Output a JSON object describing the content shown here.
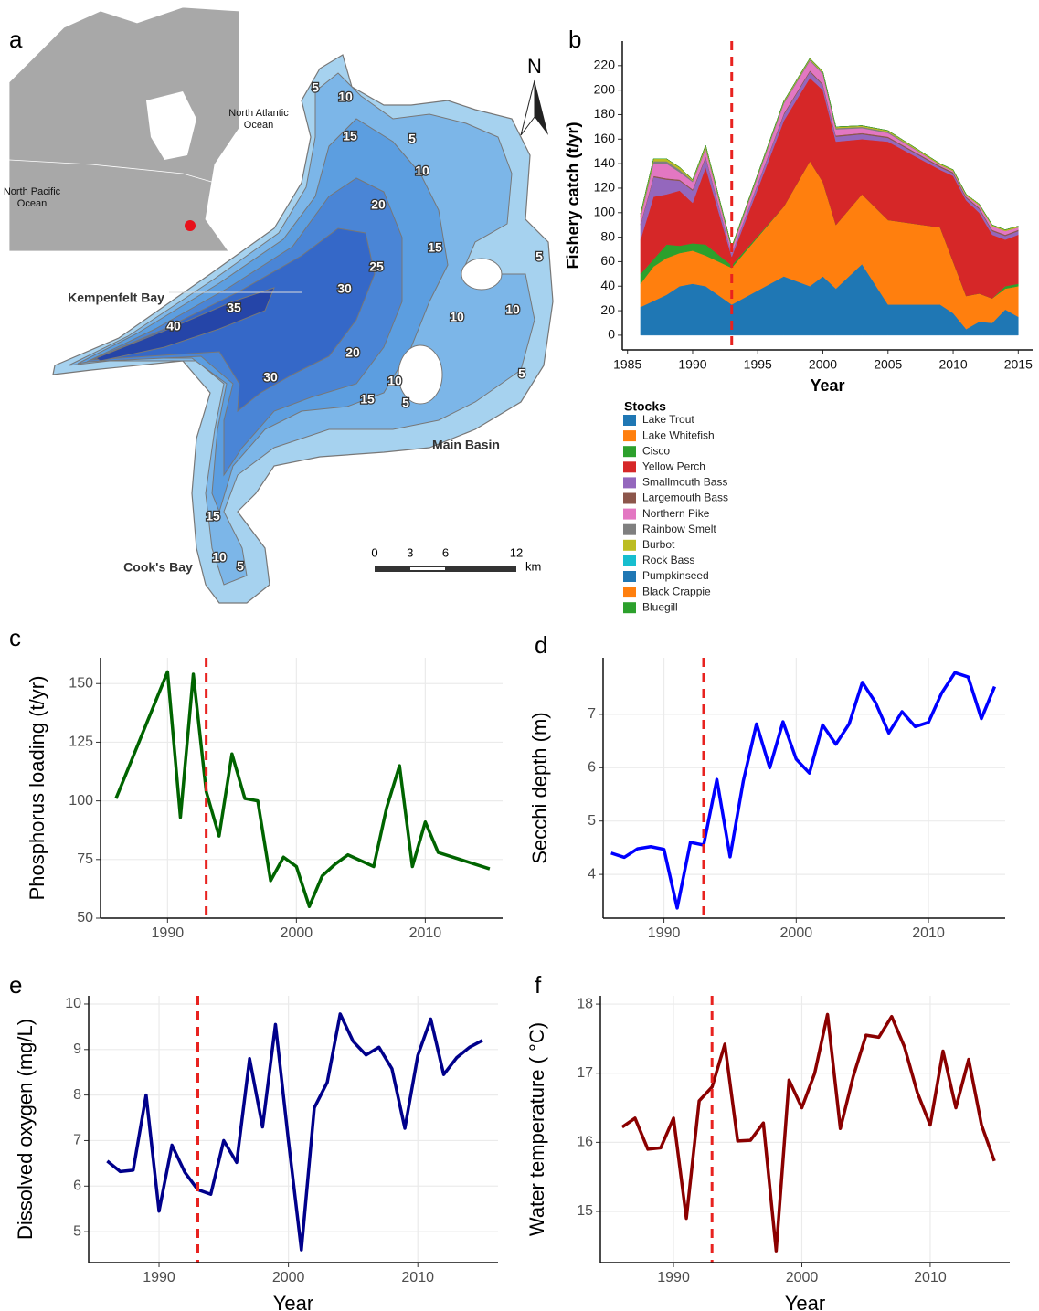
{
  "map": {
    "label": "a",
    "north": "N",
    "oceans": [
      "North Atlantic Ocean",
      "North Pacific Ocean"
    ],
    "places": [
      "Kempenfelt Bay",
      "Main Basin",
      "Cook's Bay"
    ],
    "depth_labels": [
      5,
      10,
      15,
      5,
      10,
      20,
      15,
      5,
      25,
      30,
      35,
      40,
      10,
      10,
      20,
      30,
      10,
      5,
      15,
      5,
      15,
      10,
      5
    ],
    "scale_ticks": [
      0,
      3,
      6,
      12
    ],
    "scale_unit": "km"
  },
  "chart_data": [
    {
      "label": "b",
      "type": "area",
      "stacked": true,
      "grid": false,
      "legend_title": "Stocks",
      "xlabel": "Year",
      "ylabel": "Fishery catch (t/yr)",
      "vline": 1993,
      "vline_color": "#e8221f",
      "x": [
        1986,
        1987,
        1988,
        1989,
        1990,
        1991,
        1993,
        1997,
        1999,
        2000,
        2001,
        2003,
        2005,
        2009,
        2010,
        2011,
        2012,
        2013,
        2014,
        2015
      ],
      "series": [
        {
          "name": "Lake Trout",
          "color": "#1f77b4",
          "values": [
            23,
            28,
            33,
            40,
            42,
            40,
            25,
            48,
            40,
            48,
            38,
            58,
            25,
            25,
            18,
            5,
            11,
            10,
            21,
            15
          ]
        },
        {
          "name": "Lake Whitefish",
          "color": "#ff7f0e",
          "values": [
            19,
            28,
            30,
            27,
            27,
            25,
            30,
            57,
            102,
            77,
            52,
            57,
            69,
            63,
            42,
            27,
            23,
            20,
            17,
            25
          ]
        },
        {
          "name": "Cisco",
          "color": "#2ca02c",
          "values": [
            8,
            6,
            11,
            6,
            6,
            9,
            2,
            0,
            0,
            0,
            0,
            0,
            0,
            0,
            0,
            0,
            0,
            0,
            2,
            2
          ]
        },
        {
          "name": "Yellow Perch",
          "color": "#d62728",
          "values": [
            28,
            51,
            41,
            45,
            33,
            63,
            7,
            70,
            68,
            75,
            68,
            45,
            64,
            47,
            70,
            78,
            66,
            52,
            38,
            40
          ]
        },
        {
          "name": "Smallmouth Bass",
          "color": "#9467bd",
          "values": [
            12,
            16,
            12,
            8,
            10,
            8,
            3,
            5,
            5,
            4,
            4,
            4,
            3,
            2,
            2,
            2,
            3,
            3,
            3,
            3
          ]
        },
        {
          "name": "Largemouth Bass",
          "color": "#8c564b",
          "values": [
            1,
            1,
            1,
            1,
            1,
            1,
            0,
            1,
            1,
            1,
            1,
            1,
            1,
            1,
            1,
            1,
            1,
            1,
            1,
            1
          ]
        },
        {
          "name": "Northern Pike",
          "color": "#e377c2",
          "values": [
            5,
            10,
            12,
            6,
            6,
            6,
            3,
            8,
            8,
            8,
            5,
            4,
            3,
            1,
            1,
            1,
            2,
            3,
            3,
            2
          ]
        },
        {
          "name": "Rainbow Smelt",
          "color": "#7f7f7f",
          "values": [
            1,
            2,
            2,
            2,
            1,
            1,
            1,
            1,
            1,
            1,
            1,
            1,
            1,
            0,
            0,
            0,
            0,
            0,
            0,
            0
          ]
        },
        {
          "name": "Burbot",
          "color": "#bcbd22",
          "values": [
            2,
            2,
            2,
            2,
            1,
            2,
            1,
            1,
            1,
            1,
            1,
            1,
            1,
            1,
            1,
            1,
            1,
            1,
            1,
            1
          ]
        },
        {
          "name": "Rock Bass",
          "color": "#17becf",
          "values": [
            0,
            0,
            0,
            0,
            0,
            0,
            0,
            0,
            0,
            0,
            0,
            0,
            0,
            0,
            0,
            0,
            0,
            0,
            0,
            0
          ]
        },
        {
          "name": "Pumpkinseed",
          "color": "#1f77b4",
          "values": [
            0,
            0,
            0,
            0,
            0,
            0,
            0,
            0,
            0,
            0,
            0,
            0,
            0,
            0,
            0,
            0,
            0,
            0,
            0,
            0
          ]
        },
        {
          "name": "Black Crappie",
          "color": "#ff7f0e",
          "values": [
            0,
            0,
            0,
            0,
            0,
            0,
            0,
            0,
            0,
            0,
            0,
            0,
            0,
            0,
            0,
            0,
            0,
            0,
            0,
            0
          ]
        },
        {
          "name": "Bluegill",
          "color": "#2ca02c",
          "values": [
            0,
            0,
            0,
            0,
            0,
            0,
            0,
            0,
            0,
            0,
            0,
            0,
            0,
            0,
            0,
            0,
            0,
            0,
            0,
            0
          ]
        }
      ],
      "xlim": [
        1984.6,
        2016.1
      ],
      "ylim": [
        -12,
        240
      ],
      "xticks": [
        1985,
        1990,
        1995,
        2000,
        2005,
        2010,
        2015
      ],
      "yticks": [
        0,
        20,
        40,
        60,
        80,
        100,
        120,
        140,
        160,
        180,
        200,
        220
      ]
    },
    {
      "label": "c",
      "type": "line",
      "grid": true,
      "ylabel": "Phosphorus loading (t/yr)",
      "vline": 1993,
      "vline_color": "#e8221f",
      "color": "#006400",
      "x": [
        1986,
        1990,
        1991,
        1992,
        1993,
        1994,
        1995,
        1996,
        1997,
        1998,
        1999,
        2000,
        2001,
        2002,
        2003,
        2004,
        2006,
        2007,
        2008,
        2009,
        2010,
        2011,
        2015
      ],
      "values": [
        101,
        155,
        93,
        154,
        104,
        85,
        120,
        101,
        100,
        66,
        76,
        72,
        55,
        68,
        73,
        77,
        72,
        97,
        115,
        72,
        91,
        78,
        71
      ],
      "xlim": [
        1984.8,
        2016
      ],
      "ylim": [
        50,
        161
      ],
      "xticks": [
        1990,
        2000,
        2010
      ],
      "yticks": [
        50,
        75,
        100,
        125,
        150
      ]
    },
    {
      "label": "d",
      "type": "line",
      "grid": true,
      "ylabel": "Secchi depth (m)",
      "vline": 1993,
      "vline_color": "#e8221f",
      "color": "#0000ff",
      "x": [
        1986,
        1987,
        1988,
        1989,
        1990,
        1991,
        1992,
        1993,
        1994,
        1995,
        1996,
        1997,
        1998,
        1999,
        2000,
        2001,
        2002,
        2003,
        2004,
        2005,
        2006,
        2007,
        2008,
        2009,
        2010,
        2011,
        2012,
        2013,
        2014,
        2015
      ],
      "values": [
        4.4,
        4.32,
        4.48,
        4.52,
        4.47,
        3.37,
        4.6,
        4.55,
        5.78,
        4.33,
        5.75,
        6.82,
        6.0,
        6.86,
        6.16,
        5.9,
        6.8,
        6.44,
        6.82,
        7.6,
        7.22,
        6.65,
        7.05,
        6.77,
        6.85,
        7.4,
        7.78,
        7.7,
        6.92,
        7.52
      ],
      "xlim": [
        1985.4,
        2015.8
      ],
      "ylim": [
        3.18,
        8.06
      ],
      "xticks": [
        1990,
        2000,
        2010
      ],
      "yticks": [
        4,
        5,
        6,
        7
      ]
    },
    {
      "label": "e",
      "type": "line",
      "grid": true,
      "xlabel": "Year",
      "ylabel": "Dissolved oxygen (mg/L)",
      "vline": 1993,
      "vline_color": "#e8221f",
      "color": "#00008b",
      "x": [
        1986,
        1987,
        1988,
        1989,
        1990,
        1991,
        1992,
        1993,
        1994,
        1995,
        1996,
        1997,
        1998,
        1999,
        2000,
        2001,
        2002,
        2003,
        2004,
        2005,
        2006,
        2007,
        2008,
        2009,
        2010,
        2011,
        2012,
        2013,
        2014,
        2015
      ],
      "values": [
        6.55,
        6.32,
        6.35,
        8.0,
        5.45,
        6.9,
        6.3,
        5.92,
        5.82,
        7.0,
        6.52,
        8.8,
        7.3,
        9.55,
        7.0,
        4.6,
        7.72,
        8.28,
        9.78,
        9.18,
        8.88,
        9.05,
        8.58,
        7.27,
        8.87,
        9.67,
        8.45,
        8.82,
        9.05,
        9.2
      ],
      "xlim": [
        1984.56,
        2016.2
      ],
      "ylim": [
        4.32,
        10.18
      ],
      "xticks": [
        1990,
        2000,
        2010
      ],
      "yticks": [
        5,
        6,
        7,
        8,
        9,
        10
      ]
    },
    {
      "label": "f",
      "type": "line",
      "grid": true,
      "xlabel": "Year",
      "ylabel": "Water temperature ( °C)",
      "vline": 1993,
      "vline_color": "#e8221f",
      "color": "#8b0000",
      "x": [
        1986,
        1987,
        1988,
        1989,
        1990,
        1991,
        1992,
        1993,
        1994,
        1995,
        1996,
        1997,
        1998,
        1999,
        2000,
        2001,
        2002,
        2003,
        2004,
        2005,
        2006,
        2007,
        2008,
        2009,
        2010,
        2011,
        2012,
        2013,
        2014,
        2015
      ],
      "values": [
        16.22,
        16.35,
        15.9,
        15.92,
        16.35,
        14.9,
        16.6,
        16.8,
        17.42,
        16.02,
        16.03,
        16.28,
        14.43,
        16.9,
        16.5,
        17.0,
        17.85,
        16.2,
        16.95,
        17.55,
        17.52,
        17.82,
        17.38,
        16.72,
        16.25,
        17.32,
        16.5,
        17.2,
        16.25,
        15.73
      ],
      "xlim": [
        1984.3,
        2016.2
      ],
      "ylim": [
        14.26,
        18.12
      ],
      "xticks": [
        1990,
        2000,
        2010
      ],
      "yticks": [
        15,
        16,
        17,
        18
      ]
    }
  ]
}
